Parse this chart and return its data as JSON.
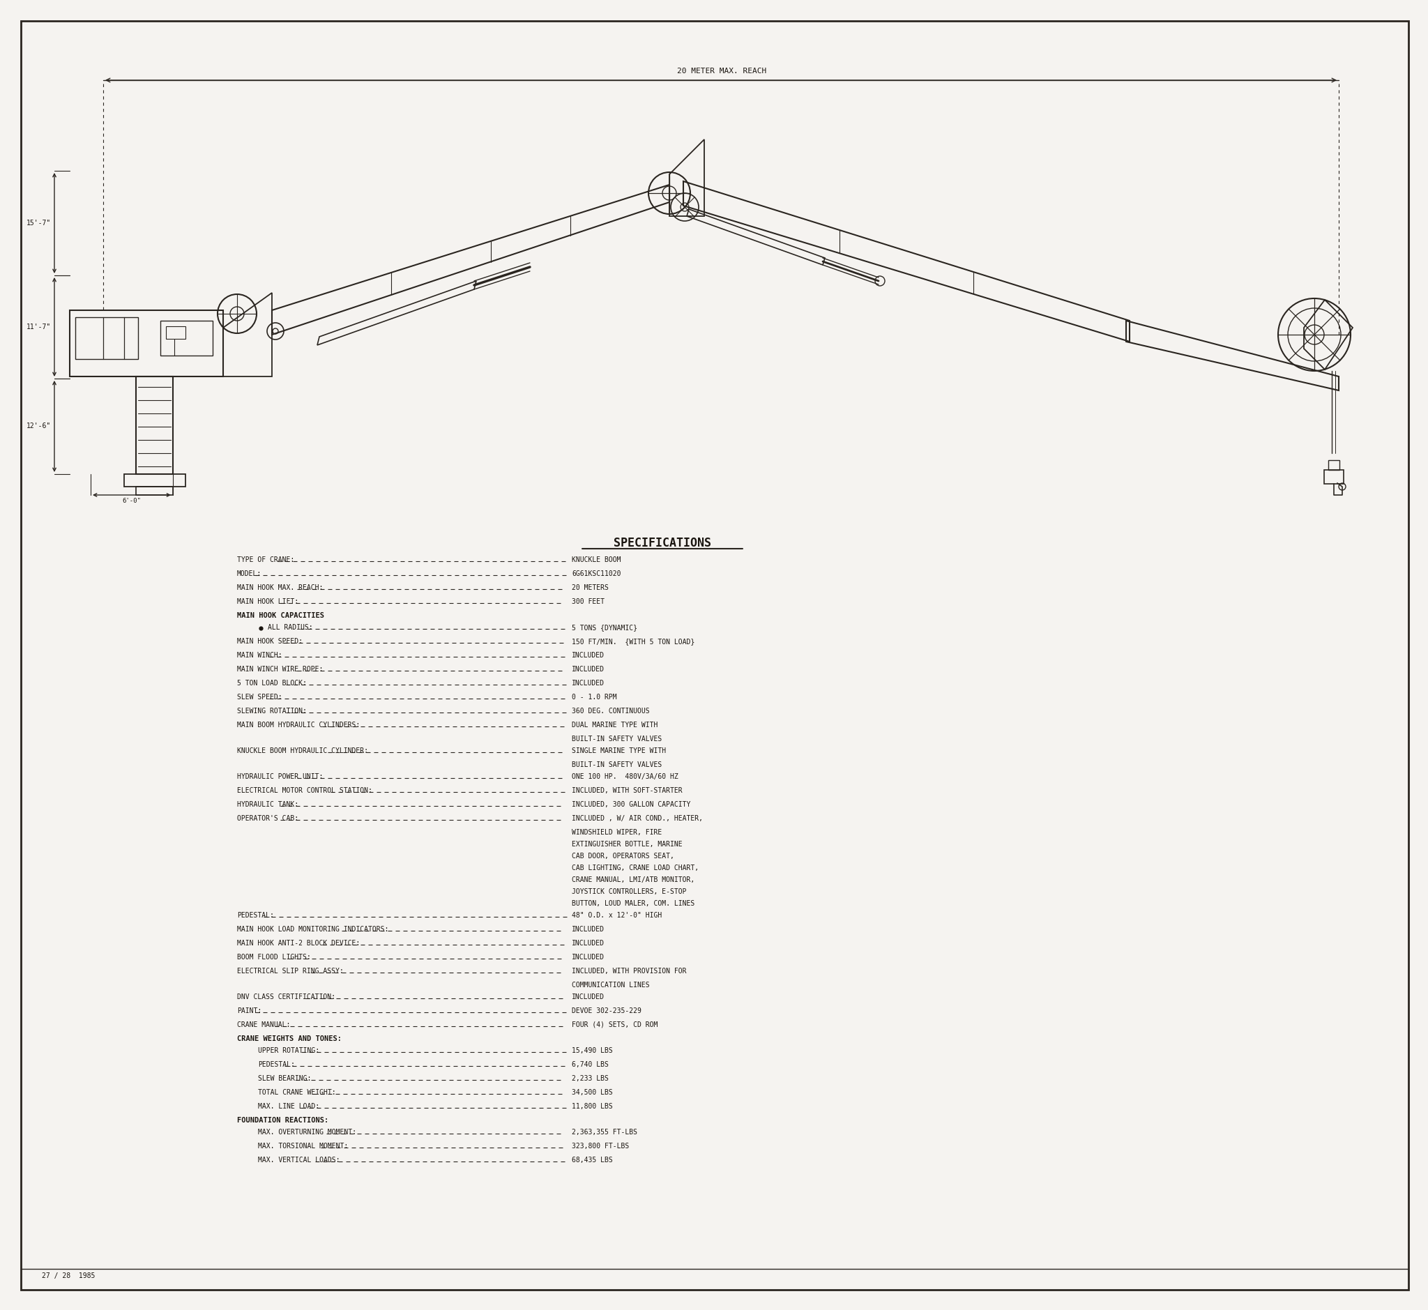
{
  "bg_color": "#f5f3f0",
  "line_color": "#2a2520",
  "text_color": "#1a1510",
  "title": "SPECIFICATIONS",
  "specs": [
    {
      "label": "TYPE OF CRANE:",
      "value": "KNUCKLE BOOM",
      "header": false,
      "bullet": false,
      "indent": 0
    },
    {
      "label": "MODEL:",
      "value": "6G61KSC11020",
      "header": false,
      "bullet": false,
      "indent": 0
    },
    {
      "label": "MAIN HOOK MAX. REACH:",
      "value": "20 METERS",
      "header": false,
      "bullet": false,
      "indent": 0
    },
    {
      "label": "MAIN HOOK LIFT:",
      "value": "300 FEET",
      "header": false,
      "bullet": false,
      "indent": 0
    },
    {
      "label": "MAIN HOOK CAPACITIES",
      "value": "",
      "header": true,
      "bullet": false,
      "indent": 0
    },
    {
      "label": "ALL RADIUS:",
      "value": "5 TONS {DYNAMIC}",
      "header": false,
      "bullet": true,
      "indent": 1
    },
    {
      "label": "MAIN HOOK SPEED:",
      "value": "150 FT/MIN.  {WITH 5 TON LOAD}",
      "header": false,
      "bullet": false,
      "indent": 0
    },
    {
      "label": "MAIN WINCH:",
      "value": "INCLUDED",
      "header": false,
      "bullet": false,
      "indent": 0
    },
    {
      "label": "MAIN WINCH WIRE ROPE:",
      "value": "INCLUDED",
      "header": false,
      "bullet": false,
      "indent": 0
    },
    {
      "label": "5 TON LOAD BLOCK:",
      "value": "INCLUDED",
      "header": false,
      "bullet": false,
      "indent": 0
    },
    {
      "label": "SLEW SPEED:",
      "value": "0 - 1.0 RPM",
      "header": false,
      "bullet": false,
      "indent": 0
    },
    {
      "label": "SLEWING ROTATION:",
      "value": "360 DEG. CONTINUOUS",
      "header": false,
      "bullet": false,
      "indent": 0
    },
    {
      "label": "MAIN BOOM HYDRAULIC CYLINDERS:",
      "value": "DUAL MARINE TYPE WITH\nBUILT-IN SAFETY VALVES",
      "header": false,
      "bullet": false,
      "indent": 0
    },
    {
      "label": "KNUCKLE BOOM HYDRAULIC CYLINDER:",
      "value": "SINGLE MARINE TYPE WITH\nBUILT-IN SAFETY VALVES",
      "header": false,
      "bullet": false,
      "indent": 0
    },
    {
      "label": "HYDRAULIC POWER UNIT:",
      "value": "ONE 100 HP.  480V/3A/60 HZ",
      "header": false,
      "bullet": false,
      "indent": 0
    },
    {
      "label": "ELECTRICAL MOTOR CONTROL STATION:",
      "value": "INCLUDED, WITH SOFT-STARTER",
      "header": false,
      "bullet": false,
      "indent": 0
    },
    {
      "label": "HYDRAULIC TANK:",
      "value": "INCLUDED, 300 GALLON CAPACITY",
      "header": false,
      "bullet": false,
      "indent": 0
    },
    {
      "label": "OPERATOR'S CAB:",
      "value": "INCLUDED , W/ AIR COND., HEATER,\nWINDSHIELD WIPER, FIRE\nEXTINGUISHER BOTTLE, MARINE\nCAB DOOR, OPERATORS SEAT,\nCAB LIGHTING, CRANE LOAD CHART,\nCRANE MANUAL, LMI/ATB MONITOR,\nJOYSTICK CONTROLLERS, E-STOP\nBUTTON, LOUD MALER, COM. LINES",
      "header": false,
      "bullet": false,
      "indent": 0
    },
    {
      "label": "PEDESTAL:",
      "value": "48\" O.D. x 12'-0\" HIGH",
      "header": false,
      "bullet": false,
      "indent": 0
    },
    {
      "label": "MAIN HOOK LOAD MONITORING INDICATORS:",
      "value": "INCLUDED",
      "header": false,
      "bullet": false,
      "indent": 0
    },
    {
      "label": "MAIN HOOK ANTI-2 BLOCK DEVICE:",
      "value": "INCLUDED",
      "header": false,
      "bullet": false,
      "indent": 0
    },
    {
      "label": "BOOM FLOOD LIGHTS:",
      "value": "INCLUDED",
      "header": false,
      "bullet": false,
      "indent": 0
    },
    {
      "label": "ELECTRICAL SLIP RING ASSY:",
      "value": "INCLUDED, WITH PROVISION FOR\nCOMMUNICATION LINES",
      "header": false,
      "bullet": false,
      "indent": 0
    },
    {
      "label": "DNV CLASS CERTIFICATION:",
      "value": "INCLUDED",
      "header": false,
      "bullet": false,
      "indent": 0
    },
    {
      "label": "PAINT:",
      "value": "DEVOE 302-235-229",
      "header": false,
      "bullet": false,
      "indent": 0
    },
    {
      "label": "CRANE MANUAL:",
      "value": "FOUR (4) SETS, CD ROM",
      "header": false,
      "bullet": false,
      "indent": 0
    },
    {
      "label": "CRANE WEIGHTS AND TONES:",
      "value": "",
      "header": true,
      "bullet": false,
      "indent": 0
    },
    {
      "label": "UPPER ROTATING:",
      "value": "15,490 LBS",
      "header": false,
      "bullet": false,
      "indent": 1
    },
    {
      "label": "PEDESTAL:",
      "value": "6,740 LBS",
      "header": false,
      "bullet": false,
      "indent": 1
    },
    {
      "label": "SLEW BEARING:",
      "value": "2,233 LBS",
      "header": false,
      "bullet": false,
      "indent": 1
    },
    {
      "label": "TOTAL CRANE WEIGHT:",
      "value": "34,500 LBS",
      "header": false,
      "bullet": false,
      "indent": 1
    },
    {
      "label": "MAX. LINE LOAD:",
      "value": "11,800 LBS",
      "header": false,
      "bullet": false,
      "indent": 1
    },
    {
      "label": "FOUNDATION REACTIONS:",
      "value": "",
      "header": true,
      "bullet": false,
      "indent": 0
    },
    {
      "label": "MAX. OVERTURNING MOMENT:",
      "value": "2,363,355 FT-LBS",
      "header": false,
      "bullet": false,
      "indent": 1
    },
    {
      "label": "MAX. TORSIONAL MOMENT:",
      "value": "323,800 FT-LBS",
      "header": false,
      "bullet": false,
      "indent": 1
    },
    {
      "label": "MAX. VERTICAL LOADS:",
      "value": "68,435 LBS",
      "header": false,
      "bullet": false,
      "indent": 1
    }
  ],
  "footer": "27 / 28  1985",
  "dim_reach": "20 METER MAX. REACH",
  "dim_left1": "15'-7\"",
  "dim_left2": "11'-7\"",
  "dim_left3": "12'-6\""
}
